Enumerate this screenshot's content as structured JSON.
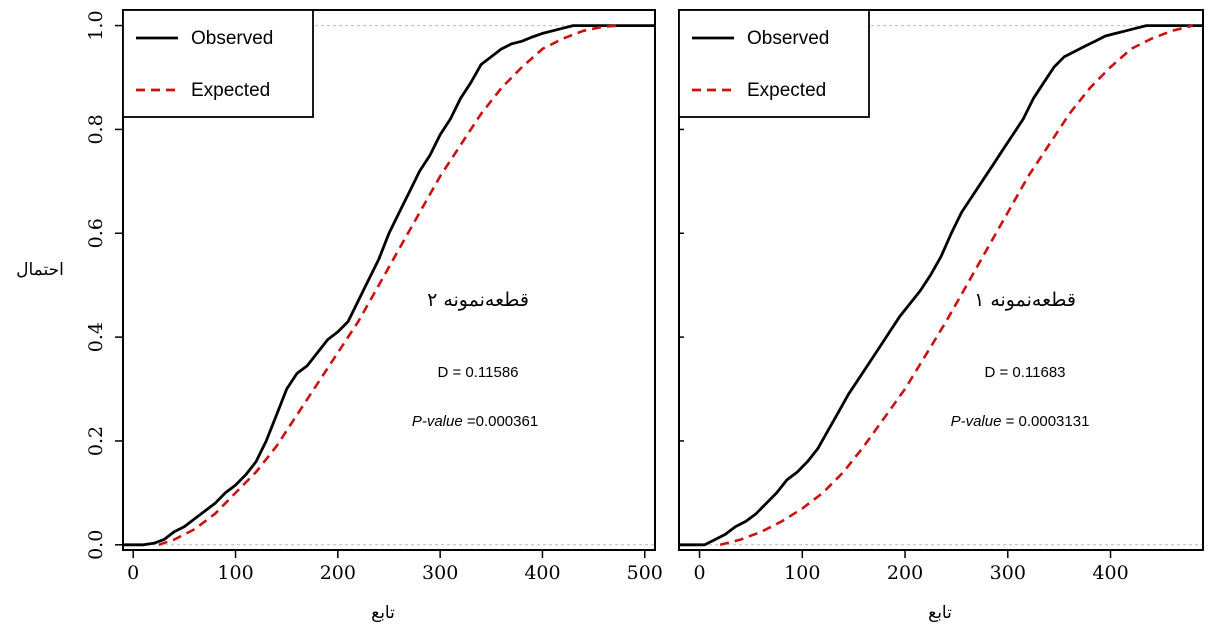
{
  "y_axis_label": "احتمال",
  "chart_data": [
    {
      "type": "line",
      "title": "",
      "xlabel": "تابع",
      "ylabel": "احتمال",
      "xlim": [
        -10,
        510
      ],
      "ylim": [
        -0.01,
        1.03
      ],
      "xticks": [
        "0",
        "100",
        "200",
        "300",
        "400",
        "500"
      ],
      "xtick_values": [
        0,
        100,
        200,
        300,
        400,
        500
      ],
      "yticks": [
        "0.0",
        "0.2",
        "0.4",
        "0.6",
        "0.8",
        "1.0"
      ],
      "ytick_values": [
        0,
        0.2,
        0.4,
        0.6,
        0.8,
        1.0
      ],
      "grid": false,
      "reference_lines": [
        0,
        1
      ],
      "legend": {
        "position": "top-left",
        "entries": [
          "Observed",
          "Expected"
        ]
      },
      "annotation": {
        "sample_label": "قطعه‌نمونه ۲",
        "d_stat": "D = 0.11586",
        "p_label": "P-value",
        "p_value": " =0.000361"
      },
      "series": [
        {
          "name": "Observed",
          "color": "#000000",
          "style": "solid",
          "x": [
            -10,
            10,
            20,
            30,
            40,
            50,
            60,
            70,
            80,
            90,
            100,
            110,
            120,
            130,
            140,
            150,
            160,
            170,
            180,
            190,
            200,
            210,
            220,
            230,
            240,
            250,
            260,
            270,
            280,
            290,
            300,
            310,
            320,
            330,
            340,
            350,
            360,
            370,
            380,
            390,
            400,
            410,
            420,
            430,
            440,
            450,
            460,
            470,
            480,
            490,
            510
          ],
          "y": [
            0,
            0,
            0.003,
            0.01,
            0.025,
            0.035,
            0.05,
            0.065,
            0.08,
            0.1,
            0.115,
            0.135,
            0.16,
            0.2,
            0.25,
            0.3,
            0.33,
            0.345,
            0.37,
            0.395,
            0.41,
            0.43,
            0.47,
            0.51,
            0.55,
            0.6,
            0.64,
            0.68,
            0.72,
            0.75,
            0.79,
            0.82,
            0.86,
            0.89,
            0.925,
            0.94,
            0.955,
            0.965,
            0.97,
            0.978,
            0.985,
            0.99,
            0.995,
            1.0,
            1.0,
            1.0,
            1.0,
            1.0,
            1.0,
            1.0,
            1.0
          ]
        },
        {
          "name": "Expected",
          "color": "#cc1111",
          "style": "dashed",
          "x": [
            25,
            40,
            60,
            80,
            100,
            120,
            140,
            160,
            180,
            200,
            220,
            240,
            260,
            280,
            300,
            320,
            340,
            360,
            380,
            400,
            420,
            440,
            460,
            475
          ],
          "y": [
            0,
            0.01,
            0.03,
            0.06,
            0.1,
            0.14,
            0.19,
            0.25,
            0.31,
            0.37,
            0.43,
            0.5,
            0.57,
            0.64,
            0.71,
            0.77,
            0.83,
            0.88,
            0.92,
            0.955,
            0.975,
            0.99,
            0.998,
            1.0
          ]
        }
      ]
    },
    {
      "type": "line",
      "title": "",
      "xlabel": "تابع",
      "ylabel": "",
      "xlim": [
        -20,
        490
      ],
      "ylim": [
        -0.01,
        1.03
      ],
      "xticks": [
        "0",
        "100",
        "200",
        "300",
        "400"
      ],
      "xtick_values": [
        0,
        100,
        200,
        300,
        400
      ],
      "yticks": [],
      "ytick_values": [
        0,
        0.2,
        0.4,
        0.6,
        0.8,
        1.0
      ],
      "grid": false,
      "reference_lines": [
        0,
        1
      ],
      "legend": {
        "position": "top-left",
        "entries": [
          "Observed",
          "Expected"
        ]
      },
      "annotation": {
        "sample_label": "قطعه‌نمونه ۱",
        "d_stat": "D = 0.11683",
        "p_label": "P-value",
        "p_value": " = 0.0003131"
      },
      "series": [
        {
          "name": "Observed",
          "color": "#000000",
          "style": "solid",
          "x": [
            -20,
            5,
            15,
            25,
            35,
            45,
            55,
            65,
            75,
            85,
            95,
            105,
            115,
            125,
            135,
            145,
            155,
            165,
            175,
            185,
            195,
            205,
            215,
            225,
            235,
            245,
            255,
            265,
            275,
            285,
            295,
            305,
            315,
            325,
            335,
            345,
            355,
            365,
            375,
            385,
            395,
            405,
            415,
            425,
            435,
            445,
            455,
            465,
            475,
            490
          ],
          "y": [
            0,
            0,
            0.01,
            0.02,
            0.035,
            0.045,
            0.06,
            0.08,
            0.1,
            0.125,
            0.14,
            0.16,
            0.185,
            0.22,
            0.255,
            0.29,
            0.32,
            0.35,
            0.38,
            0.41,
            0.44,
            0.465,
            0.49,
            0.52,
            0.555,
            0.6,
            0.64,
            0.67,
            0.7,
            0.73,
            0.76,
            0.79,
            0.82,
            0.86,
            0.89,
            0.92,
            0.94,
            0.95,
            0.96,
            0.97,
            0.98,
            0.985,
            0.99,
            0.995,
            1.0,
            1.0,
            1.0,
            1.0,
            1.0,
            1.0
          ]
        },
        {
          "name": "Expected",
          "color": "#cc1111",
          "style": "dashed",
          "x": [
            20,
            40,
            60,
            80,
            100,
            120,
            140,
            160,
            180,
            200,
            220,
            240,
            260,
            280,
            300,
            320,
            340,
            360,
            380,
            400,
            420,
            440,
            460,
            480
          ],
          "y": [
            0,
            0.01,
            0.025,
            0.045,
            0.07,
            0.1,
            0.14,
            0.19,
            0.245,
            0.3,
            0.365,
            0.43,
            0.5,
            0.57,
            0.64,
            0.71,
            0.77,
            0.83,
            0.88,
            0.92,
            0.955,
            0.975,
            0.99,
            1.0
          ]
        }
      ]
    }
  ]
}
